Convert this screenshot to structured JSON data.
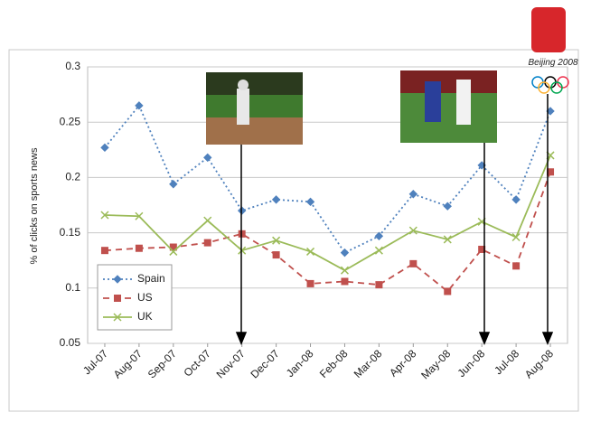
{
  "chart_data": {
    "type": "line",
    "y_label": "% of clicks on sports news",
    "logo_text": "Beijing 2008",
    "categories": [
      "Jul-07",
      "Aug-07",
      "Sep-07",
      "Oct-07",
      "Nov-07",
      "Dec-07",
      "Jan-08",
      "Feb-08",
      "Mar-08",
      "Apr-08",
      "May-08",
      "Jun-08",
      "Jul-08",
      "Aug-08"
    ],
    "series": [
      {
        "name": "Spain",
        "color": "#4f81bd",
        "marker": "diamond",
        "dash": "2,3",
        "values": [
          0.227,
          0.265,
          0.194,
          0.218,
          0.17,
          0.18,
          0.178,
          0.132,
          0.147,
          0.185,
          0.174,
          0.211,
          0.18,
          0.26
        ]
      },
      {
        "name": "US",
        "color": "#c0504d",
        "marker": "square",
        "dash": "7,5",
        "values": [
          0.134,
          0.136,
          0.137,
          0.141,
          0.149,
          0.13,
          0.104,
          0.106,
          0.103,
          0.122,
          0.097,
          0.135,
          0.12,
          0.205
        ]
      },
      {
        "name": "UK",
        "color": "#9bbb59",
        "marker": "x",
        "dash": "",
        "values": [
          0.166,
          0.165,
          0.133,
          0.161,
          0.134,
          0.143,
          0.133,
          0.116,
          0.134,
          0.152,
          0.144,
          0.16,
          0.146,
          0.22
        ]
      }
    ],
    "ylim": [
      0.05,
      0.3
    ],
    "yticks": [
      0.05,
      0.1,
      0.15,
      0.2,
      0.25,
      0.3
    ],
    "grid": true,
    "legend": "lower-left"
  }
}
